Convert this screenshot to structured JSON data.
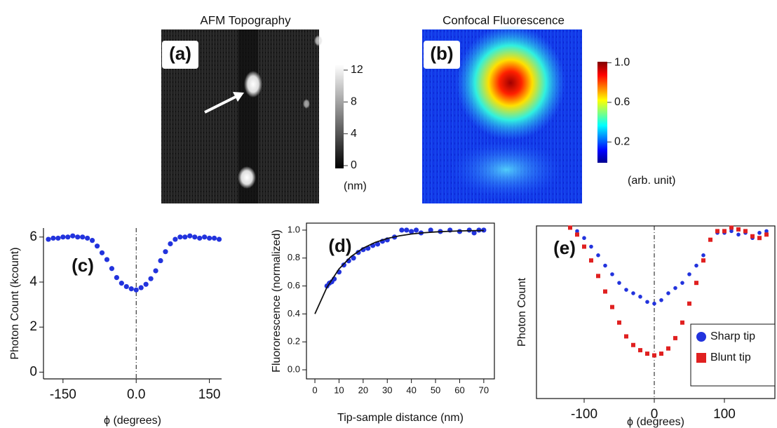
{
  "chart_data": [
    {
      "type": "image",
      "title": "AFM Topography",
      "panel": "(a)",
      "clim": [
        -0.35,
        12.7
      ],
      "cticks": [
        0,
        4,
        8,
        12
      ],
      "clabel": "(nm)",
      "colormap": "gray"
    },
    {
      "type": "image",
      "title": "Confocal Fluorescence",
      "panel": "(b)",
      "clim": [
        -0.01,
        1.01
      ],
      "cticks": [
        0.2,
        0.6,
        {
          "value": 1,
          "label": "1.0"
        }
      ],
      "clabel": "(arb. unit)",
      "colormap": "jet"
    },
    {
      "type": "scatter",
      "panel": "(c)",
      "xlabel": "ϕ (degrees)",
      "ylabel": "Photon Count (kcount)",
      "xlim": [
        -190,
        175
      ],
      "ylim": [
        -0.3,
        6.4
      ],
      "xticks": [
        -150,
        {
          "value": 0,
          "label": "0.0"
        },
        150
      ],
      "yticks": [
        0,
        2,
        4,
        6
      ],
      "vline": 0,
      "series": [
        {
          "color": "#2233dd",
          "marker": "circle",
          "x": [
            -180,
            -170,
            -160,
            -150,
            -140,
            -130,
            -120,
            -110,
            -100,
            -90,
            -80,
            -70,
            -60,
            -50,
            -40,
            -30,
            -20,
            -10,
            0,
            10,
            20,
            30,
            40,
            50,
            60,
            70,
            80,
            90,
            100,
            110,
            120,
            130,
            140,
            150,
            160,
            170
          ],
          "values": [
            5.9,
            5.95,
            5.95,
            6.0,
            6.0,
            6.05,
            6.0,
            6.0,
            5.95,
            5.85,
            5.6,
            5.3,
            5.0,
            4.6,
            4.2,
            3.95,
            3.8,
            3.7,
            3.65,
            3.75,
            3.9,
            4.15,
            4.5,
            4.95,
            5.35,
            5.7,
            5.9,
            6.0,
            6.0,
            6.05,
            6.0,
            5.95,
            6.0,
            5.95,
            5.95,
            5.9
          ]
        }
      ]
    },
    {
      "type": "scatter",
      "panel": "(d)",
      "xlabel": "Tip-sample distance (nm)",
      "ylabel": "Fluororescence (normalized)",
      "xlim": [
        -3.5,
        74.4
      ],
      "ylim": [
        -0.065,
        1.05
      ],
      "xticks": [
        0,
        10,
        20,
        30,
        40,
        50,
        60,
        70
      ],
      "yticks": [
        {
          "value": 0,
          "label": "0.0"
        },
        0.2,
        0.4,
        0.6,
        0.8,
        {
          "value": 1,
          "label": "1.0"
        }
      ],
      "frame": true,
      "series": [
        {
          "color": "#2233dd",
          "marker": "circle",
          "x": [
            5,
            6,
            7,
            8,
            10,
            12,
            14,
            16,
            18,
            20,
            22,
            24,
            26,
            28,
            30,
            33,
            36,
            38,
            40,
            42,
            44,
            48,
            52,
            56,
            60,
            64,
            66,
            68,
            70
          ],
          "values": [
            0.6,
            0.62,
            0.63,
            0.65,
            0.7,
            0.75,
            0.78,
            0.8,
            0.84,
            0.86,
            0.87,
            0.89,
            0.9,
            0.92,
            0.93,
            0.95,
            1.0,
            1.0,
            0.99,
            1.0,
            0.98,
            1.0,
            0.99,
            1.0,
            0.99,
            1.0,
            0.98,
            1.0,
            1.0
          ]
        },
        {
          "color": "#111111",
          "marker": "line",
          "x": [
            0,
            5,
            10,
            15,
            20,
            25,
            30,
            35,
            40,
            45,
            50,
            55,
            60,
            65,
            70
          ],
          "values": [
            0.4,
            0.591,
            0.722,
            0.811,
            0.871,
            0.912,
            0.94,
            0.959,
            0.972,
            0.981,
            0.987,
            0.991,
            0.994,
            0.996,
            0.997
          ]
        }
      ]
    },
    {
      "type": "scatter",
      "panel": "(e)",
      "xlabel": "ϕ (degrees)",
      "ylabel": "Photon Count",
      "xlim": [
        -168,
        172
      ],
      "ylim": [
        0,
        1
      ],
      "xticks": [
        -100,
        0,
        100
      ],
      "vline": 0,
      "frame": true,
      "legend": "lower right",
      "series": [
        {
          "name": "Sharp tip",
          "color": "#2233dd",
          "marker": "circle",
          "x": [
            -110,
            -100,
            -90,
            -80,
            -70,
            -60,
            -50,
            -40,
            -30,
            -20,
            -10,
            0,
            10,
            20,
            30,
            40,
            50,
            60,
            70,
            80,
            90,
            100,
            110,
            120,
            130,
            140,
            150,
            160
          ],
          "values": [
            0.97,
            0.93,
            0.88,
            0.83,
            0.77,
            0.72,
            0.67,
            0.63,
            0.61,
            0.59,
            0.56,
            0.55,
            0.57,
            0.61,
            0.64,
            0.67,
            0.72,
            0.77,
            0.83,
            0.92,
            0.96,
            0.96,
            0.97,
            0.95,
            0.96,
            0.93,
            0.96,
            0.97
          ]
        },
        {
          "name": "Blunt tip",
          "color": "#e02020",
          "marker": "square",
          "x": [
            -120,
            -110,
            -100,
            -90,
            -80,
            -70,
            -60,
            -50,
            -40,
            -30,
            -20,
            -10,
            0,
            10,
            20,
            30,
            40,
            50,
            60,
            70,
            80,
            90,
            100,
            110,
            120,
            130,
            140,
            150,
            160
          ],
          "values": [
            0.99,
            0.95,
            0.88,
            0.8,
            0.71,
            0.62,
            0.53,
            0.44,
            0.36,
            0.31,
            0.28,
            0.26,
            0.25,
            0.26,
            0.29,
            0.35,
            0.44,
            0.55,
            0.67,
            0.8,
            0.92,
            0.97,
            0.97,
            0.99,
            0.98,
            0.97,
            0.94,
            0.93,
            0.95
          ]
        }
      ]
    }
  ]
}
